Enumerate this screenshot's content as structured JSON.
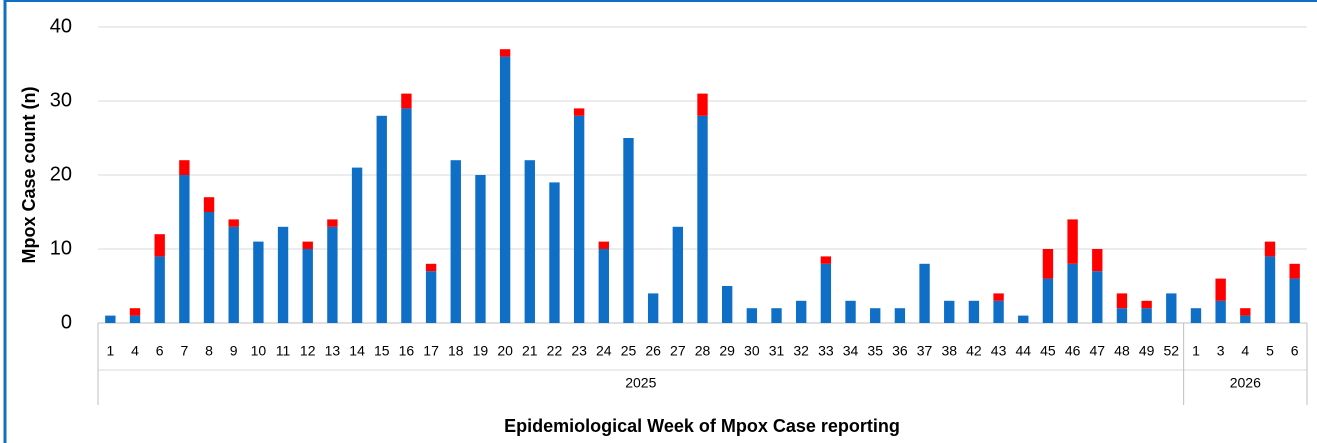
{
  "chart_data": {
    "type": "stacked_bar",
    "x_axis_label": "Epidemiological Week of Mpox Case reporting",
    "y_axis_label": "Mpox Case count (n)",
    "category_groups": [
      {
        "label": "2025",
        "categories": [
          "1",
          "4",
          "6",
          "7",
          "8",
          "9",
          "10",
          "11",
          "12",
          "13",
          "14",
          "15",
          "16",
          "17",
          "18",
          "19",
          "20",
          "21",
          "22",
          "23",
          "24",
          "25",
          "26",
          "27",
          "28",
          "29",
          "30",
          "31",
          "32",
          "33",
          "34",
          "35",
          "36",
          "37",
          "38",
          "42",
          "43",
          "44",
          "45",
          "46",
          "47",
          "48",
          "49",
          "52"
        ]
      },
      {
        "label": "2026",
        "categories": [
          "1",
          "3",
          "4",
          "5",
          "6"
        ]
      }
    ],
    "series": [
      {
        "color": "#0f6fc6",
        "values": [
          1,
          1,
          9,
          20,
          15,
          13,
          11,
          13,
          10,
          13,
          21,
          28,
          29,
          7,
          22,
          20,
          36,
          22,
          19,
          28,
          10,
          25,
          4,
          13,
          28,
          5,
          2,
          2,
          3,
          8,
          3,
          2,
          2,
          8,
          3,
          3,
          3,
          1,
          6,
          8,
          7,
          2,
          2,
          4,
          2,
          3,
          1,
          9,
          6
        ]
      },
      {
        "color": "#ff0000",
        "values": [
          0,
          1,
          3,
          2,
          2,
          1,
          0,
          0,
          1,
          1,
          0,
          0,
          2,
          1,
          0,
          0,
          1,
          0,
          0,
          1,
          1,
          0,
          0,
          0,
          3,
          0,
          0,
          0,
          0,
          1,
          0,
          0,
          0,
          0,
          0,
          0,
          1,
          0,
          4,
          6,
          3,
          2,
          1,
          0,
          0,
          3,
          1,
          2,
          2
        ]
      }
    ],
    "ylim": [
      0,
      40
    ],
    "yticks": [
      0,
      10,
      20,
      30,
      40
    ],
    "grid": true
  }
}
